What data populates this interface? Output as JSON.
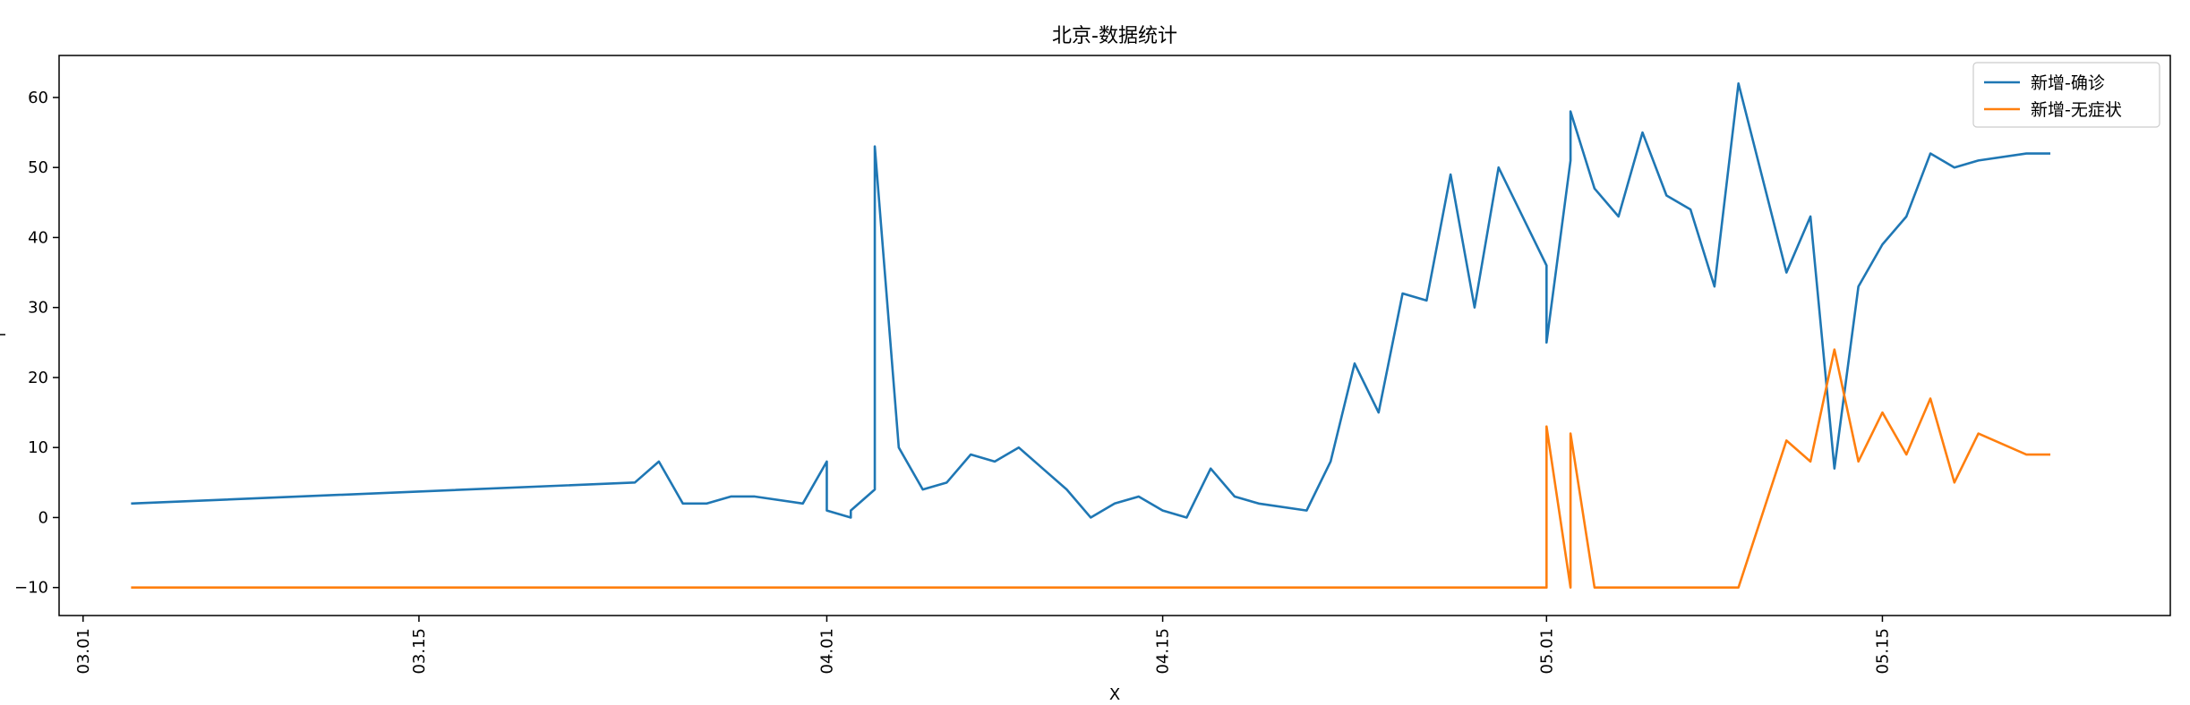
{
  "chart_data": {
    "type": "line",
    "title": "北京-数据统计",
    "xlabel": "X",
    "ylabel": "",
    "x_axis": {
      "type": "date",
      "range": [
        "2022-02-28",
        "2022-05-27"
      ],
      "ticks": [
        {
          "date": "2022-03-01",
          "label": "03.01"
        },
        {
          "date": "2022-03-15",
          "label": "03.15"
        },
        {
          "date": "2022-04-01",
          "label": "04.01"
        },
        {
          "date": "2022-04-15",
          "label": "04.15"
        },
        {
          "date": "2022-05-01",
          "label": "05.01"
        },
        {
          "date": "2022-05-15",
          "label": "05.15"
        }
      ]
    },
    "y_axis": {
      "range": [
        -14,
        66
      ],
      "ticks": [
        -10,
        0,
        10,
        20,
        30,
        40,
        50,
        60
      ]
    },
    "grid": false,
    "legend": {
      "placement": "top-right"
    },
    "series": [
      {
        "name": "新增-确诊",
        "color": "#1f77b4",
        "points": [
          [
            "2022-03-03T00:00",
            2
          ],
          [
            "2022-03-24T00:00",
            5
          ],
          [
            "2022-03-25T00:00",
            8
          ],
          [
            "2022-03-26T00:00",
            2
          ],
          [
            "2022-03-27T00:00",
            2
          ],
          [
            "2022-03-28T00:00",
            3
          ],
          [
            "2022-03-29T00:00",
            3
          ],
          [
            "2022-03-31T00:00",
            2
          ],
          [
            "2022-04-01T00:00",
            8
          ],
          [
            "2022-04-01T00:00",
            1
          ],
          [
            "2022-04-02T00:00",
            0
          ],
          [
            "2022-04-02T00:00",
            1
          ],
          [
            "2022-04-03T00:00",
            4
          ],
          [
            "2022-04-03T00:00",
            53
          ],
          [
            "2022-04-04T00:00",
            10
          ],
          [
            "2022-04-05T00:00",
            4
          ],
          [
            "2022-04-06T00:00",
            5
          ],
          [
            "2022-04-07T00:00",
            9
          ],
          [
            "2022-04-08T00:00",
            8
          ],
          [
            "2022-04-09T00:00",
            10
          ],
          [
            "2022-04-10T00:00",
            7
          ],
          [
            "2022-04-11T00:00",
            4
          ],
          [
            "2022-04-12T00:00",
            0
          ],
          [
            "2022-04-13T00:00",
            2
          ],
          [
            "2022-04-14T00:00",
            3
          ],
          [
            "2022-04-15T00:00",
            1
          ],
          [
            "2022-04-16T00:00",
            0
          ],
          [
            "2022-04-17T00:00",
            7
          ],
          [
            "2022-04-18T00:00",
            3
          ],
          [
            "2022-04-19T00:00",
            2
          ],
          [
            "2022-04-21T00:00",
            1
          ],
          [
            "2022-04-22T00:00",
            8
          ],
          [
            "2022-04-23T00:00",
            22
          ],
          [
            "2022-04-24T00:00",
            15
          ],
          [
            "2022-04-25T00:00",
            32
          ],
          [
            "2022-04-26T00:00",
            31
          ],
          [
            "2022-04-27T00:00",
            49
          ],
          [
            "2022-04-28T00:00",
            30
          ],
          [
            "2022-04-29T00:00",
            50
          ],
          [
            "2022-05-01T00:00",
            36
          ],
          [
            "2022-05-01T00:00",
            25
          ],
          [
            "2022-05-02T00:00",
            51
          ],
          [
            "2022-05-02T00:00",
            58
          ],
          [
            "2022-05-03T00:00",
            47
          ],
          [
            "2022-05-04T00:00",
            43
          ],
          [
            "2022-05-05T00:00",
            55
          ],
          [
            "2022-05-06T00:00",
            46
          ],
          [
            "2022-05-07T00:00",
            44
          ],
          [
            "2022-05-08T00:00",
            33
          ],
          [
            "2022-05-09T00:00",
            62
          ],
          [
            "2022-05-11T00:00",
            35
          ],
          [
            "2022-05-12T00:00",
            43
          ],
          [
            "2022-05-13T00:00",
            7
          ],
          [
            "2022-05-14T00:00",
            33
          ],
          [
            "2022-05-15T00:00",
            39
          ],
          [
            "2022-05-16T00:00",
            43
          ],
          [
            "2022-05-17T00:00",
            52
          ],
          [
            "2022-05-18T00:00",
            50
          ],
          [
            "2022-05-19T00:00",
            51
          ],
          [
            "2022-05-21T00:00",
            52
          ],
          [
            "2022-05-22T00:00",
            52
          ]
        ]
      },
      {
        "name": "新增-无症状",
        "color": "#ff7f0e",
        "points": [
          [
            "2022-03-03T00:00",
            -10
          ],
          [
            "2022-05-01T00:00",
            -10
          ],
          [
            "2022-05-01T00:00",
            13
          ],
          [
            "2022-05-02T00:00",
            -10
          ],
          [
            "2022-05-02T00:00",
            12
          ],
          [
            "2022-05-03T00:00",
            -10
          ],
          [
            "2022-05-09T00:00",
            -10
          ],
          [
            "2022-05-11T00:00",
            11
          ],
          [
            "2022-05-12T00:00",
            8
          ],
          [
            "2022-05-13T00:00",
            24
          ],
          [
            "2022-05-14T00:00",
            8
          ],
          [
            "2022-05-15T00:00",
            15
          ],
          [
            "2022-05-16T00:00",
            9
          ],
          [
            "2022-05-17T00:00",
            17
          ],
          [
            "2022-05-18T00:00",
            5
          ],
          [
            "2022-05-19T00:00",
            12
          ],
          [
            "2022-05-21T00:00",
            9
          ],
          [
            "2022-05-22T00:00",
            9
          ]
        ]
      }
    ]
  }
}
